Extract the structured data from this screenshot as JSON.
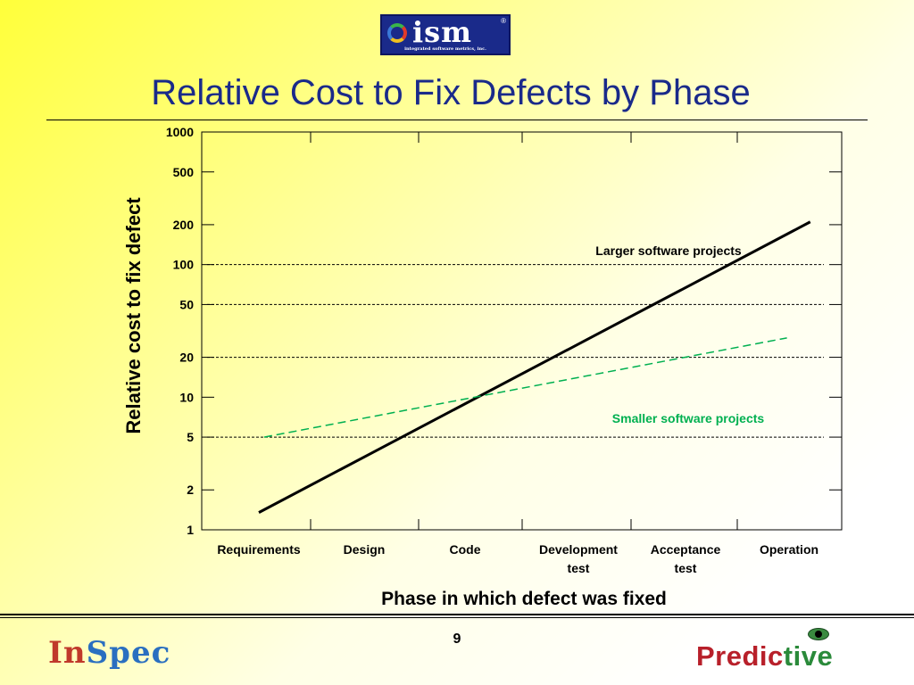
{
  "header": {
    "logo_text": "ism",
    "logo_registered": "®",
    "logo_tagline": "integrated software metrics, inc.",
    "title": "Relative Cost to Fix Defects by Phase"
  },
  "chart_data": {
    "type": "line",
    "title": "Relative Cost to Fix Defects by Phase",
    "xlabel": "Phase in which defect was fixed",
    "ylabel": "Relative cost to fix defect",
    "y_scale": "log",
    "ylim": [
      1,
      1000
    ],
    "y_ticks": [
      1,
      2,
      5,
      10,
      20,
      50,
      100,
      200,
      500,
      1000
    ],
    "y_tick_labels": [
      "1",
      "2",
      "5",
      "10",
      "20",
      "50",
      "100",
      "200",
      "500",
      "1000"
    ],
    "categories": [
      [
        "Requirements"
      ],
      [
        "Design"
      ],
      [
        "Code"
      ],
      [
        "Development",
        "test"
      ],
      [
        "Acceptance",
        "test"
      ],
      [
        "Operation"
      ]
    ],
    "series": [
      {
        "name": "Larger software projects",
        "color": "#000000",
        "style": "solid",
        "x": [
          0,
          5.2
        ],
        "y": [
          1.35,
          210
        ]
      },
      {
        "name": "Smaller software projects",
        "color": "#00b050",
        "style": "dashed",
        "x": [
          0.05,
          4.98
        ],
        "y": [
          5,
          28
        ]
      }
    ],
    "reference_lines": [
      5,
      20,
      50,
      100
    ],
    "grid": false
  },
  "footer": {
    "page_number": "9",
    "left_logo": [
      "In",
      "Spec"
    ],
    "right_logo": [
      "Predic",
      "tive"
    ]
  }
}
